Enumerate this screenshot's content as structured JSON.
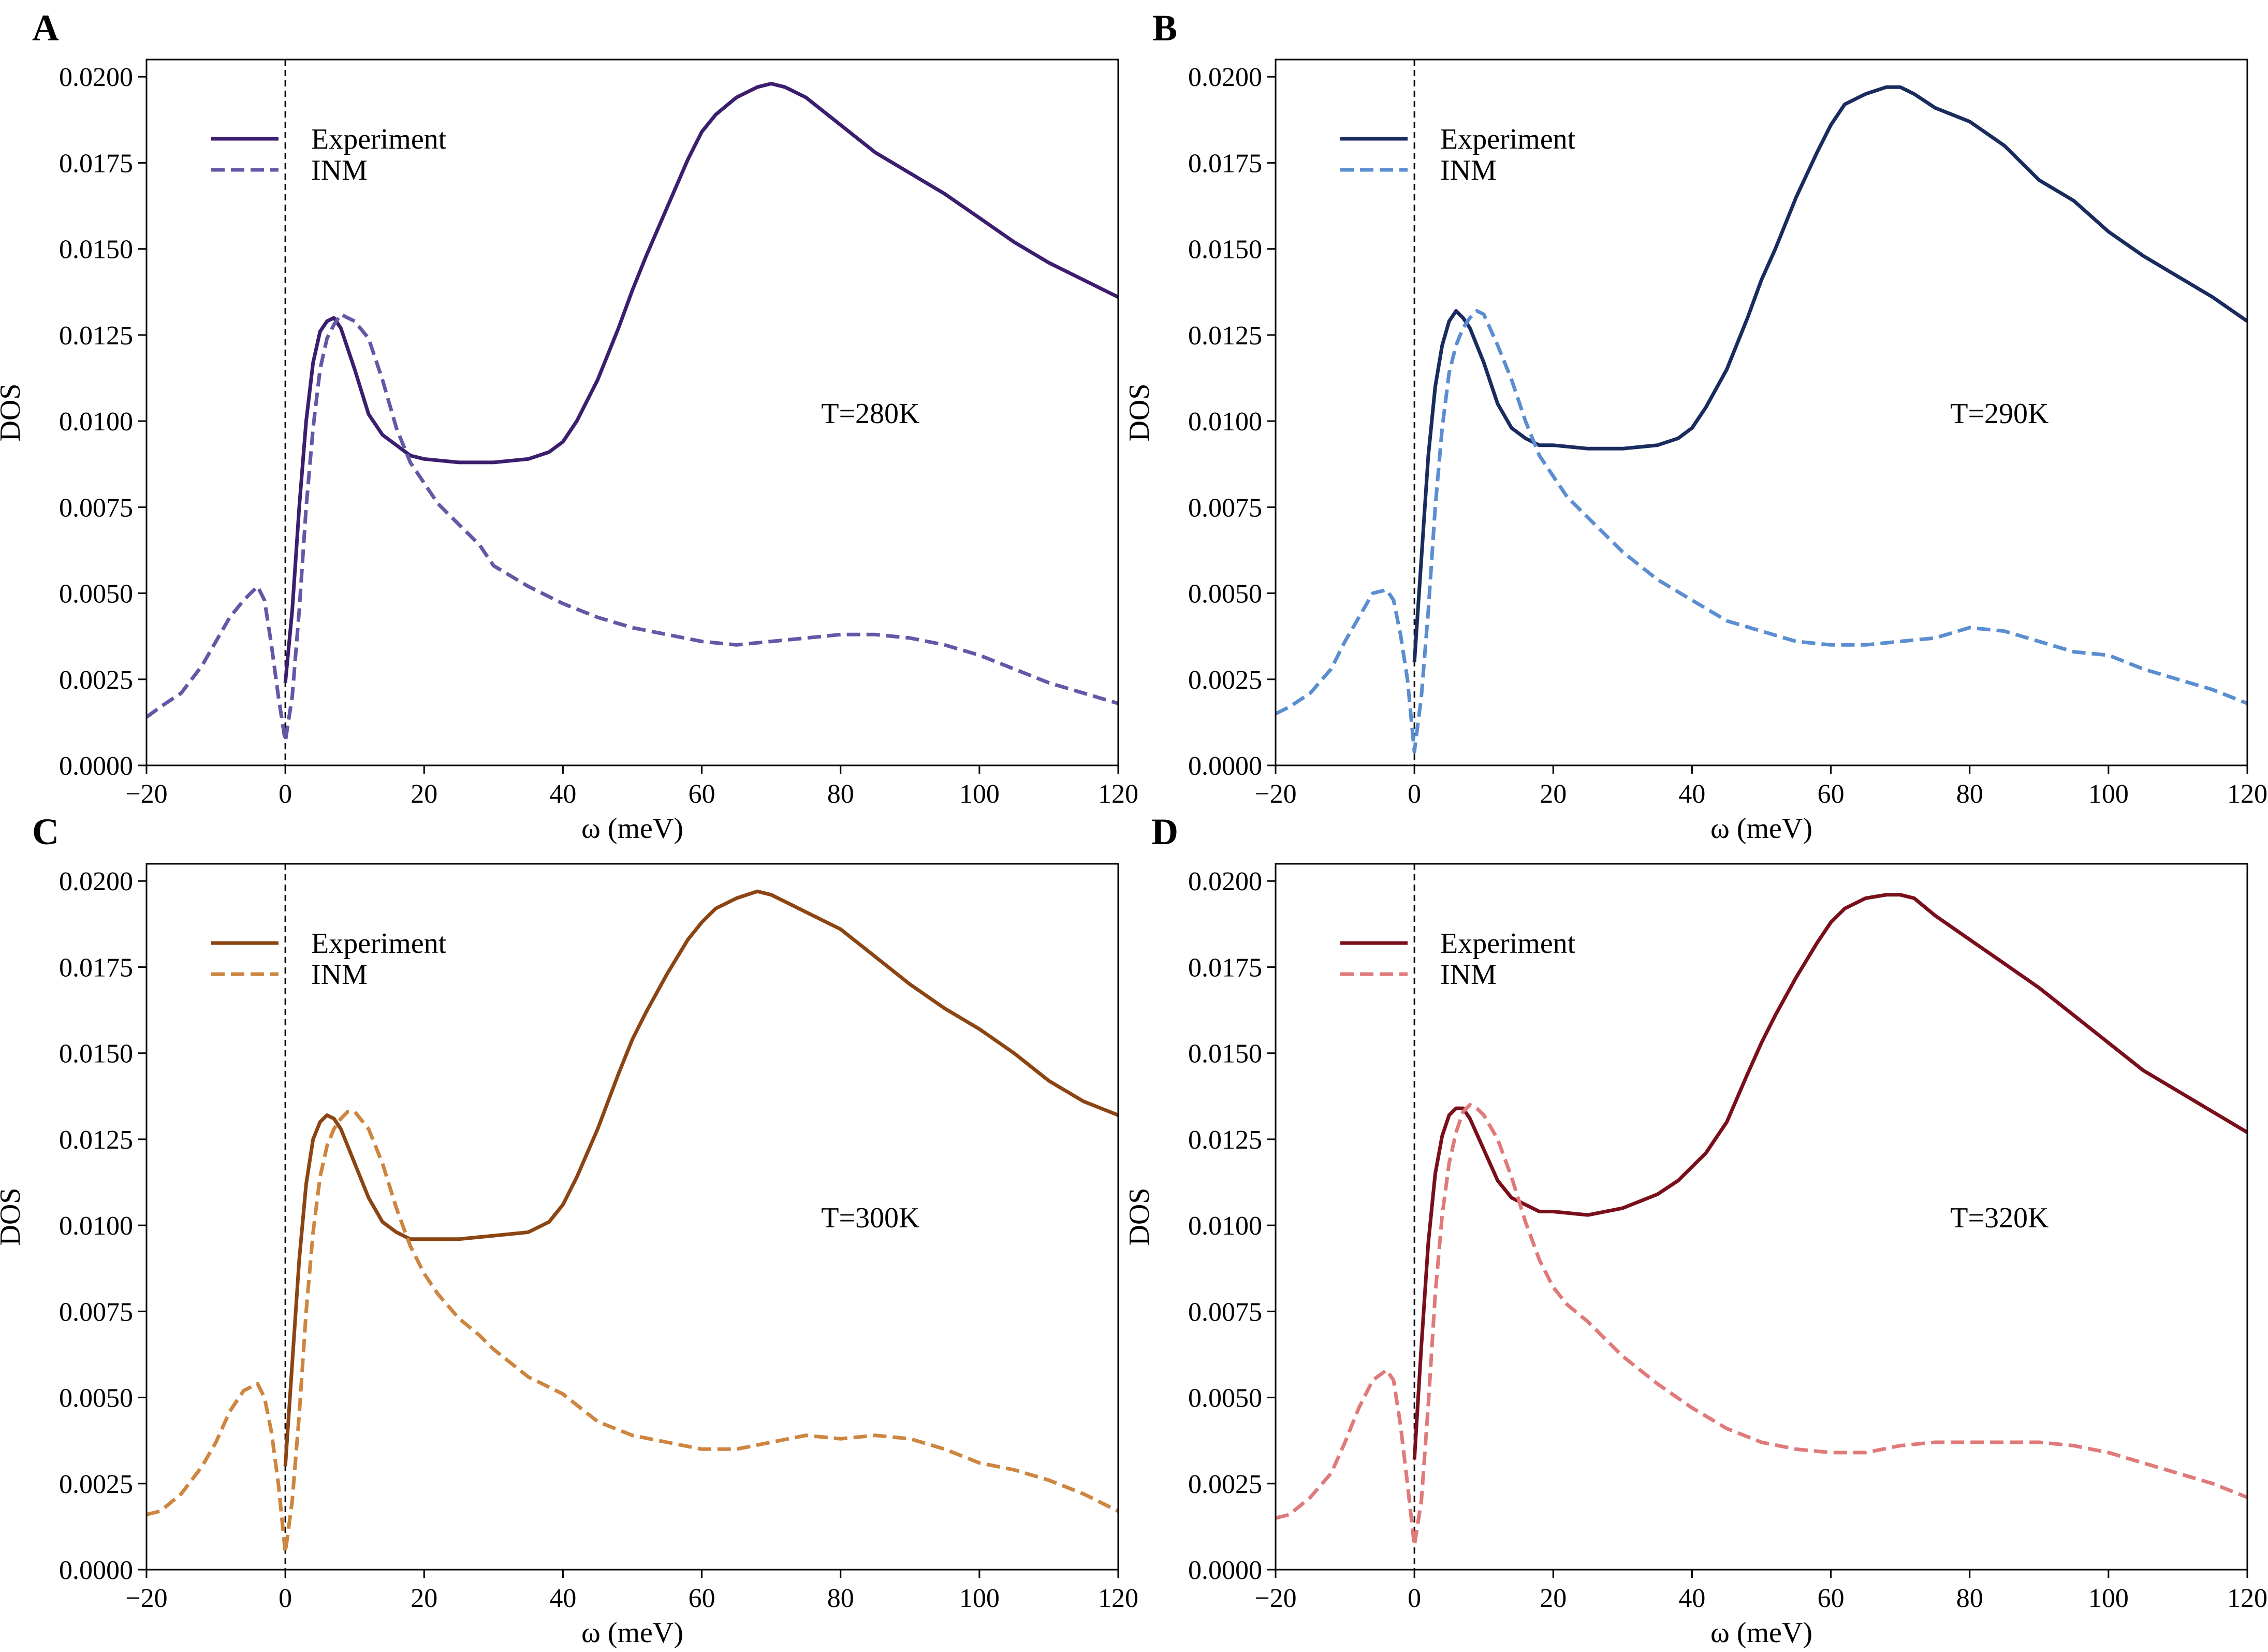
{
  "chart_data": [
    {
      "panel": "A",
      "type": "line",
      "title": "",
      "xlabel": "ω (meV)",
      "ylabel": "DOS",
      "xlim": [
        -20,
        120
      ],
      "ylim": [
        0,
        0.0205
      ],
      "xticks": [
        -20,
        0,
        20,
        40,
        60,
        80,
        100,
        120
      ],
      "yticks": [
        0.0,
        0.0025,
        0.005,
        0.0075,
        0.01,
        0.0125,
        0.015,
        0.0175,
        0.02
      ],
      "annotation": "T=280K",
      "vline_x": 0,
      "legend_position": "upper-left",
      "series": [
        {
          "name": "Experiment",
          "style": "solid",
          "color": "#3b1e6e",
          "x": [
            0,
            1,
            2,
            3,
            4,
            5,
            6,
            7,
            8,
            10,
            12,
            14,
            16,
            18,
            20,
            25,
            30,
            35,
            38,
            40,
            42,
            45,
            48,
            50,
            52,
            55,
            58,
            60,
            62,
            65,
            68,
            70,
            72,
            75,
            80,
            85,
            90,
            95,
            100,
            105,
            110,
            115,
            120
          ],
          "y": [
            0.0024,
            0.0045,
            0.0075,
            0.01,
            0.0117,
            0.0126,
            0.0129,
            0.013,
            0.0127,
            0.0115,
            0.0102,
            0.0096,
            0.0093,
            0.009,
            0.0089,
            0.0088,
            0.0088,
            0.0089,
            0.0091,
            0.0094,
            0.01,
            0.0112,
            0.0127,
            0.0138,
            0.0148,
            0.0162,
            0.0176,
            0.0184,
            0.0189,
            0.0194,
            0.0197,
            0.0198,
            0.0197,
            0.0194,
            0.0186,
            0.0178,
            0.0172,
            0.0166,
            0.0159,
            0.0152,
            0.0146,
            0.0141,
            0.0136
          ]
        },
        {
          "name": "INM",
          "style": "dashed",
          "color": "#6457a6",
          "x": [
            -20,
            -18,
            -15,
            -12,
            -10,
            -8,
            -6,
            -4,
            -3,
            -2,
            -1,
            0,
            1,
            2,
            3,
            4,
            5,
            6,
            7,
            8,
            9,
            10,
            12,
            14,
            16,
            18,
            20,
            22,
            25,
            28,
            30,
            35,
            40,
            45,
            50,
            55,
            60,
            65,
            70,
            75,
            80,
            85,
            90,
            95,
            100,
            105,
            110,
            115,
            120
          ],
          "y": [
            0.0014,
            0.0017,
            0.0021,
            0.0029,
            0.0036,
            0.0043,
            0.0048,
            0.0052,
            0.0048,
            0.0035,
            0.002,
            0.0007,
            0.002,
            0.0045,
            0.0075,
            0.0098,
            0.0115,
            0.0124,
            0.0128,
            0.0131,
            0.013,
            0.0129,
            0.0124,
            0.0112,
            0.0098,
            0.0088,
            0.0082,
            0.0076,
            0.007,
            0.0064,
            0.0058,
            0.0052,
            0.0047,
            0.0043,
            0.004,
            0.0038,
            0.0036,
            0.0035,
            0.0036,
            0.0037,
            0.0038,
            0.0038,
            0.0037,
            0.0035,
            0.0032,
            0.0028,
            0.0024,
            0.0021,
            0.0018
          ]
        }
      ]
    },
    {
      "panel": "B",
      "type": "line",
      "title": "",
      "xlabel": "ω (meV)",
      "ylabel": "DOS",
      "xlim": [
        -20,
        120
      ],
      "ylim": [
        0,
        0.0205
      ],
      "xticks": [
        -20,
        0,
        20,
        40,
        60,
        80,
        100,
        120
      ],
      "yticks": [
        0.0,
        0.0025,
        0.005,
        0.0075,
        0.01,
        0.0125,
        0.015,
        0.0175,
        0.02
      ],
      "annotation": "T=290K",
      "vline_x": 0,
      "legend_position": "upper-left",
      "series": [
        {
          "name": "Experiment",
          "style": "solid",
          "color": "#1a2b5e",
          "x": [
            0,
            1,
            2,
            3,
            4,
            5,
            6,
            7,
            8,
            10,
            12,
            14,
            16,
            18,
            20,
            25,
            30,
            35,
            38,
            40,
            42,
            45,
            48,
            50,
            52,
            55,
            58,
            60,
            62,
            65,
            68,
            70,
            72,
            75,
            80,
            85,
            90,
            95,
            100,
            105,
            110,
            115,
            120
          ],
          "y": [
            0.003,
            0.006,
            0.009,
            0.011,
            0.0122,
            0.0129,
            0.0132,
            0.013,
            0.0127,
            0.0117,
            0.0105,
            0.0098,
            0.0095,
            0.0093,
            0.0093,
            0.0092,
            0.0092,
            0.0093,
            0.0095,
            0.0098,
            0.0104,
            0.0115,
            0.013,
            0.0141,
            0.015,
            0.0165,
            0.0178,
            0.0186,
            0.0192,
            0.0195,
            0.0197,
            0.0197,
            0.0195,
            0.0191,
            0.0187,
            0.018,
            0.017,
            0.0164,
            0.0155,
            0.0148,
            0.0142,
            0.0136,
            0.0129
          ]
        },
        {
          "name": "INM",
          "style": "dashed",
          "color": "#5b8ed0",
          "x": [
            -20,
            -18,
            -15,
            -12,
            -10,
            -8,
            -6,
            -4,
            -3,
            -2,
            -1,
            0,
            1,
            2,
            3,
            4,
            5,
            6,
            7,
            8,
            9,
            10,
            12,
            14,
            16,
            18,
            20,
            22,
            25,
            28,
            30,
            35,
            40,
            45,
            50,
            55,
            60,
            65,
            70,
            75,
            80,
            85,
            90,
            95,
            100,
            105,
            110,
            115,
            120
          ],
          "y": [
            0.0015,
            0.0017,
            0.0021,
            0.0028,
            0.0036,
            0.0043,
            0.005,
            0.0051,
            0.0048,
            0.0038,
            0.0025,
            0.0004,
            0.002,
            0.0045,
            0.0075,
            0.0098,
            0.0114,
            0.0122,
            0.0127,
            0.013,
            0.0132,
            0.0131,
            0.0122,
            0.0112,
            0.01,
            0.009,
            0.0084,
            0.0078,
            0.0072,
            0.0066,
            0.0062,
            0.0054,
            0.0048,
            0.0042,
            0.0039,
            0.0036,
            0.0035,
            0.0035,
            0.0036,
            0.0037,
            0.004,
            0.0039,
            0.0036,
            0.0033,
            0.0032,
            0.0028,
            0.0025,
            0.0022,
            0.0018
          ]
        }
      ]
    },
    {
      "panel": "C",
      "type": "line",
      "title": "",
      "xlabel": "ω (meV)",
      "ylabel": "DOS",
      "xlim": [
        -20,
        120
      ],
      "ylim": [
        0,
        0.0205
      ],
      "xticks": [
        -20,
        0,
        20,
        40,
        60,
        80,
        100,
        120
      ],
      "yticks": [
        0.0,
        0.0025,
        0.005,
        0.0075,
        0.01,
        0.0125,
        0.015,
        0.0175,
        0.02
      ],
      "annotation": "T=300K",
      "vline_x": 0,
      "legend_position": "upper-left",
      "series": [
        {
          "name": "Experiment",
          "style": "solid",
          "color": "#8b4513",
          "x": [
            0,
            1,
            2,
            3,
            4,
            5,
            6,
            7,
            8,
            10,
            12,
            14,
            16,
            18,
            20,
            25,
            30,
            35,
            38,
            40,
            42,
            45,
            48,
            50,
            52,
            55,
            58,
            60,
            62,
            65,
            68,
            70,
            72,
            75,
            80,
            85,
            90,
            95,
            100,
            105,
            110,
            115,
            120
          ],
          "y": [
            0.003,
            0.006,
            0.009,
            0.0112,
            0.0125,
            0.013,
            0.0132,
            0.0131,
            0.0128,
            0.0118,
            0.0108,
            0.0101,
            0.0098,
            0.0096,
            0.0096,
            0.0096,
            0.0097,
            0.0098,
            0.0101,
            0.0106,
            0.0114,
            0.0128,
            0.0144,
            0.0154,
            0.0162,
            0.0173,
            0.0183,
            0.0188,
            0.0192,
            0.0195,
            0.0197,
            0.0196,
            0.0194,
            0.0191,
            0.0186,
            0.0178,
            0.017,
            0.0163,
            0.0157,
            0.015,
            0.0142,
            0.0136,
            0.0132
          ]
        },
        {
          "name": "INM",
          "style": "dashed",
          "color": "#cd853f",
          "x": [
            -20,
            -18,
            -15,
            -12,
            -10,
            -8,
            -6,
            -4,
            -3,
            -2,
            -1,
            0,
            1,
            2,
            3,
            4,
            5,
            6,
            7,
            8,
            9,
            10,
            12,
            14,
            16,
            18,
            20,
            22,
            25,
            28,
            30,
            35,
            40,
            45,
            50,
            55,
            60,
            65,
            70,
            75,
            80,
            85,
            90,
            95,
            100,
            105,
            110,
            115,
            120
          ],
          "y": [
            0.0016,
            0.0017,
            0.0022,
            0.003,
            0.0037,
            0.0046,
            0.0052,
            0.0054,
            0.005,
            0.004,
            0.0025,
            0.0005,
            0.002,
            0.0045,
            0.0075,
            0.0098,
            0.0114,
            0.0123,
            0.0128,
            0.0131,
            0.0133,
            0.0133,
            0.0128,
            0.0118,
            0.0105,
            0.0094,
            0.0086,
            0.008,
            0.0073,
            0.0068,
            0.0064,
            0.0056,
            0.0051,
            0.0043,
            0.0039,
            0.0037,
            0.0035,
            0.0035,
            0.0037,
            0.0039,
            0.0038,
            0.0039,
            0.0038,
            0.0035,
            0.0031,
            0.0029,
            0.0026,
            0.0022,
            0.0017
          ]
        }
      ]
    },
    {
      "panel": "D",
      "type": "line",
      "title": "",
      "xlabel": "ω (meV)",
      "ylabel": "DOS",
      "xlim": [
        -20,
        120
      ],
      "ylim": [
        0,
        0.0205
      ],
      "xticks": [
        -20,
        0,
        20,
        40,
        60,
        80,
        100,
        120
      ],
      "yticks": [
        0.0,
        0.0025,
        0.005,
        0.0075,
        0.01,
        0.0125,
        0.015,
        0.0175,
        0.02
      ],
      "annotation": "T=320K",
      "vline_x": 0,
      "legend_position": "upper-left",
      "series": [
        {
          "name": "Experiment",
          "style": "solid",
          "color": "#7a0f1c",
          "x": [
            0,
            1,
            2,
            3,
            4,
            5,
            6,
            7,
            8,
            10,
            12,
            14,
            16,
            18,
            20,
            25,
            30,
            35,
            38,
            40,
            42,
            45,
            48,
            50,
            52,
            55,
            58,
            60,
            62,
            65,
            68,
            70,
            72,
            75,
            80,
            85,
            90,
            95,
            100,
            105,
            110,
            115,
            120
          ],
          "y": [
            0.0032,
            0.0065,
            0.0095,
            0.0115,
            0.0126,
            0.0132,
            0.0134,
            0.0134,
            0.0131,
            0.0122,
            0.0113,
            0.0108,
            0.0106,
            0.0104,
            0.0104,
            0.0103,
            0.0105,
            0.0109,
            0.0113,
            0.0117,
            0.0121,
            0.013,
            0.0144,
            0.0153,
            0.0161,
            0.0172,
            0.0182,
            0.0188,
            0.0192,
            0.0195,
            0.0196,
            0.0196,
            0.0195,
            0.019,
            0.0183,
            0.0176,
            0.0169,
            0.0161,
            0.0153,
            0.0145,
            0.0139,
            0.0133,
            0.0127
          ]
        },
        {
          "name": "INM",
          "style": "dashed",
          "color": "#e07a7a",
          "x": [
            -20,
            -18,
            -15,
            -12,
            -10,
            -8,
            -6,
            -4,
            -3,
            -2,
            -1,
            0,
            1,
            2,
            3,
            4,
            5,
            6,
            7,
            8,
            9,
            10,
            12,
            14,
            16,
            18,
            20,
            22,
            25,
            28,
            30,
            35,
            40,
            45,
            50,
            55,
            60,
            65,
            70,
            75,
            80,
            85,
            90,
            95,
            100,
            105,
            110,
            115,
            120
          ],
          "y": [
            0.0015,
            0.0016,
            0.0021,
            0.0028,
            0.0037,
            0.0047,
            0.0055,
            0.0058,
            0.0055,
            0.0042,
            0.0025,
            0.0007,
            0.002,
            0.0048,
            0.008,
            0.0103,
            0.0118,
            0.0127,
            0.0133,
            0.0135,
            0.0134,
            0.0132,
            0.0125,
            0.0114,
            0.0101,
            0.009,
            0.0082,
            0.0077,
            0.0072,
            0.0066,
            0.0062,
            0.0054,
            0.0047,
            0.0041,
            0.0037,
            0.0035,
            0.0034,
            0.0034,
            0.0036,
            0.0037,
            0.0037,
            0.0037,
            0.0037,
            0.0036,
            0.0034,
            0.0031,
            0.0028,
            0.0025,
            0.0021
          ]
        }
      ]
    }
  ]
}
